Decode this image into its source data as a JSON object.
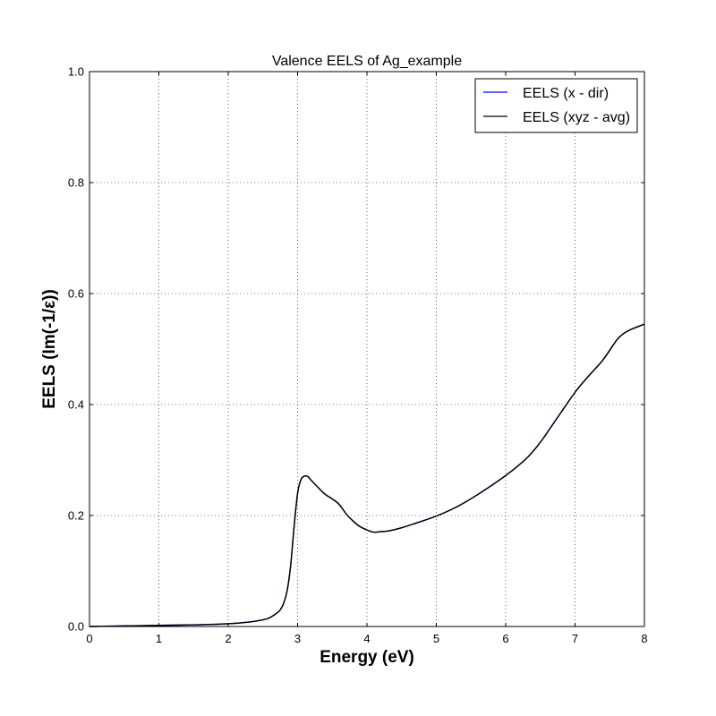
{
  "chart_data": {
    "type": "line",
    "title": "Valence EELS of Ag_example",
    "xlabel": "Energy (eV)",
    "ylabel": "EELS (Im(-1/ε))",
    "xlim": [
      0,
      8
    ],
    "ylim": [
      0,
      1.0
    ],
    "xticks": [
      "0",
      "1",
      "2",
      "3",
      "4",
      "5",
      "6",
      "7",
      "8"
    ],
    "yticks": [
      "0.0",
      "0.2",
      "0.4",
      "0.6",
      "0.8",
      "1.0"
    ],
    "grid": true,
    "legend_position": "top-right",
    "series": [
      {
        "name": "EELS (x - dir)",
        "color": "#0000ff",
        "x": [
          0,
          0.5,
          1.0,
          1.5,
          2.0,
          2.3,
          2.5,
          2.6,
          2.7,
          2.75,
          2.8,
          2.85,
          2.9,
          2.95,
          3.0,
          3.05,
          3.1,
          3.15,
          3.2,
          3.3,
          3.4,
          3.5,
          3.6,
          3.7,
          3.8,
          3.9,
          4.0,
          4.1,
          4.2,
          4.3,
          4.5,
          4.7,
          5.0,
          5.3,
          5.6,
          6.0,
          6.3,
          6.5,
          6.7,
          7.0,
          7.2,
          7.4,
          7.6,
          7.7,
          7.8,
          7.9,
          8.0
        ],
        "y": [
          0.0,
          0.001,
          0.002,
          0.003,
          0.005,
          0.008,
          0.012,
          0.016,
          0.024,
          0.03,
          0.042,
          0.065,
          0.11,
          0.18,
          0.24,
          0.265,
          0.271,
          0.27,
          0.263,
          0.25,
          0.238,
          0.23,
          0.22,
          0.203,
          0.19,
          0.18,
          0.174,
          0.17,
          0.171,
          0.172,
          0.178,
          0.186,
          0.199,
          0.216,
          0.238,
          0.272,
          0.303,
          0.332,
          0.368,
          0.422,
          0.452,
          0.48,
          0.516,
          0.528,
          0.535,
          0.54,
          0.545
        ]
      },
      {
        "name": "EELS (xyz - avg)",
        "color": "#000000",
        "x": [
          0,
          0.5,
          1.0,
          1.5,
          2.0,
          2.3,
          2.5,
          2.6,
          2.7,
          2.75,
          2.8,
          2.85,
          2.9,
          2.95,
          3.0,
          3.05,
          3.1,
          3.15,
          3.2,
          3.3,
          3.4,
          3.5,
          3.6,
          3.7,
          3.8,
          3.9,
          4.0,
          4.1,
          4.2,
          4.3,
          4.5,
          4.7,
          5.0,
          5.3,
          5.6,
          6.0,
          6.3,
          6.5,
          6.7,
          7.0,
          7.2,
          7.4,
          7.6,
          7.7,
          7.8,
          7.9,
          8.0
        ],
        "y": [
          0.0,
          0.001,
          0.002,
          0.003,
          0.005,
          0.008,
          0.012,
          0.016,
          0.024,
          0.03,
          0.042,
          0.065,
          0.11,
          0.18,
          0.24,
          0.265,
          0.271,
          0.27,
          0.263,
          0.25,
          0.238,
          0.23,
          0.22,
          0.203,
          0.19,
          0.18,
          0.174,
          0.17,
          0.171,
          0.172,
          0.178,
          0.186,
          0.199,
          0.216,
          0.238,
          0.272,
          0.303,
          0.332,
          0.368,
          0.422,
          0.452,
          0.48,
          0.516,
          0.528,
          0.535,
          0.54,
          0.545
        ]
      }
    ]
  }
}
